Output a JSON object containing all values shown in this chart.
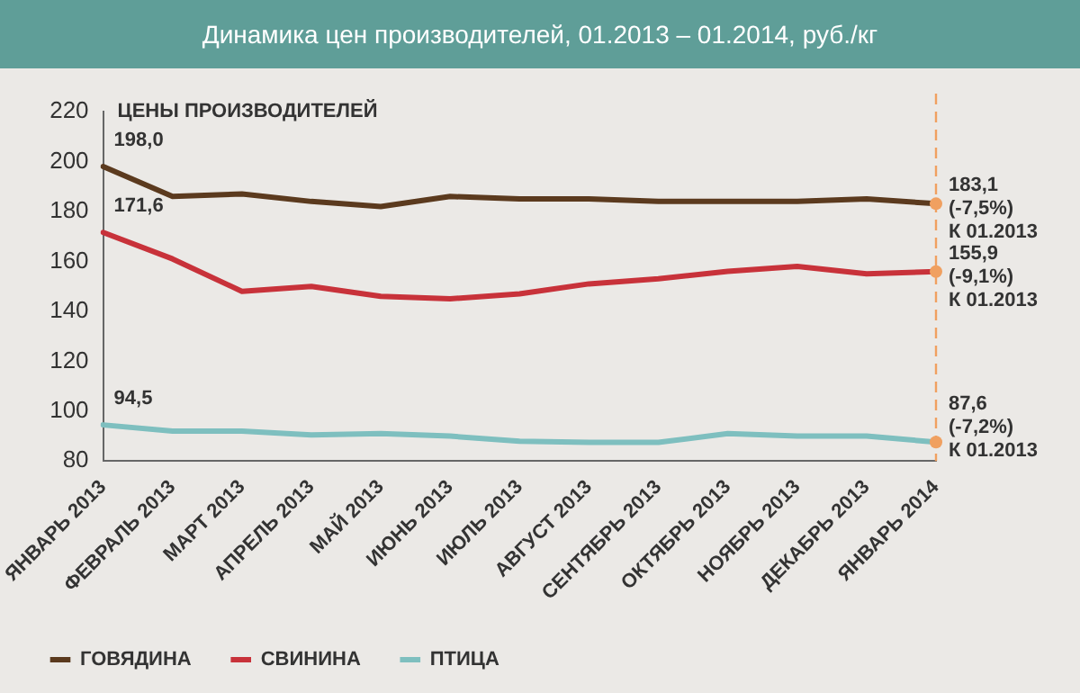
{
  "chart_data": {
    "type": "line",
    "title": "Динамика цен производителей, 01.2013 – 01.2014, руб./кг",
    "ylabel": "ЦЕНЫ ПРОИЗВОДИТЕЛЕЙ",
    "categories": [
      "ЯНВАРЬ 2013",
      "ФЕВРАЛЬ 2013",
      "МАРТ 2013",
      "АПРЕЛЬ 2013",
      "МАЙ 2013",
      "ИЮНЬ 2013",
      "ИЮЛЬ 2013",
      "АВГУСТ 2013",
      "СЕНТЯБРЬ 2013",
      "ОКТЯБРЬ 2013",
      "НОЯБРЬ 2013",
      "ДЕКАБРЬ 2013",
      "ЯНВАРЬ 2014"
    ],
    "series": [
      {
        "name": "ГОВЯДИНА",
        "color": "#5b3a1e",
        "values": [
          198.0,
          186,
          187,
          184,
          182,
          186,
          185,
          185,
          184,
          184,
          184,
          185,
          183.1
        ],
        "value_labels": [
          "198,0",
          null,
          null,
          null,
          null,
          null,
          null,
          null,
          null,
          null,
          null,
          null,
          "183,1"
        ]
      },
      {
        "name": "СВИНИНА",
        "color": "#c8323a",
        "values": [
          171.6,
          161,
          148,
          150,
          146,
          145,
          147,
          151,
          153,
          156,
          158,
          155,
          155.9
        ],
        "value_labels": [
          "171,6",
          null,
          null,
          null,
          null,
          null,
          null,
          null,
          null,
          null,
          null,
          null,
          "155,9"
        ]
      },
      {
        "name": "ПТИЦА",
        "color": "#7ebfbf",
        "values": [
          94.5,
          92,
          92,
          90.5,
          91,
          90,
          88,
          87.5,
          87.5,
          91,
          90,
          90,
          87.6
        ],
        "value_labels": [
          "94,5",
          null,
          null,
          null,
          null,
          null,
          null,
          null,
          null,
          null,
          null,
          null,
          "87,6"
        ]
      }
    ],
    "annotations": [
      {
        "text": "(-7,5%)",
        "x": "ЯНВАРЬ 2014",
        "y": 183.1
      },
      {
        "text": "К 01.2013",
        "x": "ЯНВАРЬ 2014",
        "y": 183.1
      },
      {
        "text": "(-9,1%)",
        "x": "ЯНВАРЬ 2014",
        "y": 155.9
      },
      {
        "text": "К 01.2013",
        "x": "ЯНВАРЬ 2014",
        "y": 155.9
      },
      {
        "text": "(-7,2%)",
        "x": "ЯНВАРЬ 2014",
        "y": 87.6
      },
      {
        "text": "К 01.2013",
        "x": "ЯНВАРЬ 2014",
        "y": 87.6
      }
    ],
    "ref_lines": [
      {
        "axis": "x",
        "value": "ЯНВАРЬ 2014",
        "color": "#f0a060",
        "line_style": "dashed"
      }
    ],
    "ylim": [
      80,
      220
    ],
    "yticks": [
      80,
      100,
      120,
      140,
      160,
      180,
      200,
      220
    ],
    "grid": false,
    "legend": "bottom left",
    "marker": "none",
    "line_style": "solid"
  }
}
